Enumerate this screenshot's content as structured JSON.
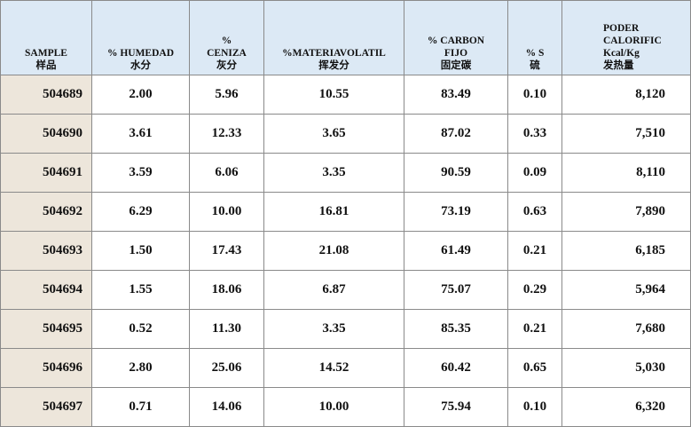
{
  "table": {
    "header": [
      [
        "SAMPLE",
        "样品"
      ],
      [
        "% HUMEDAD",
        "水分"
      ],
      [
        "%",
        "CENIZA",
        "灰分"
      ],
      [
        "%MATERIAVOLATIL",
        "挥发分"
      ],
      [
        "% CARBON",
        "FIJO",
        "固定碳"
      ],
      [
        "% S",
        "硫"
      ],
      [
        "PODER",
        "CALORIFIC",
        "Kcal/Kg",
        "发热量"
      ]
    ],
    "rows": [
      [
        "504689",
        "2.00",
        "5.96",
        "10.55",
        "83.49",
        "0.10",
        "8,120"
      ],
      [
        "504690",
        "3.61",
        "12.33",
        "3.65",
        "87.02",
        "0.33",
        "7,510"
      ],
      [
        "504691",
        "3.59",
        "6.06",
        "3.35",
        "90.59",
        "0.09",
        "8,110"
      ],
      [
        "504692",
        "6.29",
        "10.00",
        "16.81",
        "73.19",
        "0.63",
        "7,890"
      ],
      [
        "504693",
        "1.50",
        "17.43",
        "21.08",
        "61.49",
        "0.21",
        "6,185"
      ],
      [
        "504694",
        "1.55",
        "18.06",
        "6.87",
        "75.07",
        "0.29",
        "5,964"
      ],
      [
        "504695",
        "0.52",
        "11.30",
        "3.35",
        "85.35",
        "0.21",
        "7,680"
      ],
      [
        "504696",
        "2.80",
        "25.06",
        "14.52",
        "60.42",
        "0.65",
        "5,030"
      ],
      [
        "504697",
        "0.71",
        "14.06",
        "10.00",
        "75.94",
        "0.10",
        "6,320"
      ]
    ]
  }
}
